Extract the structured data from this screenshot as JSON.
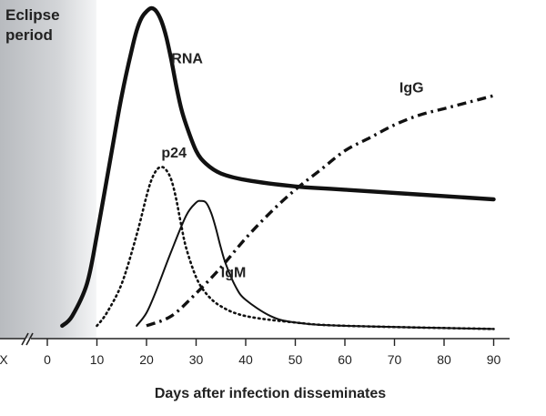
{
  "chart_data": {
    "type": "line",
    "title": "",
    "xlabel": "Days after infection disseminates",
    "ylabel": "",
    "xlim": [
      0,
      90
    ],
    "x_ticks": [
      "X",
      "0",
      "10",
      "20",
      "30",
      "40",
      "50",
      "60",
      "70",
      "80",
      "90"
    ],
    "axis_break": true,
    "shaded_region_label": "Eclipse period",
    "grid": false,
    "legend": "none",
    "series": [
      {
        "name": "RNA",
        "style": "thick-solid",
        "points": [
          [
            3,
            0.02
          ],
          [
            5,
            0.05
          ],
          [
            8,
            0.15
          ],
          [
            10,
            0.3
          ],
          [
            13,
            0.56
          ],
          [
            15,
            0.73
          ],
          [
            17,
            0.87
          ],
          [
            18,
            0.93
          ],
          [
            19,
            0.97
          ],
          [
            20,
            0.99
          ],
          [
            21,
            1.0
          ],
          [
            22,
            0.99
          ],
          [
            23,
            0.96
          ],
          [
            24,
            0.91
          ],
          [
            25,
            0.84
          ],
          [
            26,
            0.76
          ],
          [
            27,
            0.69
          ],
          [
            28,
            0.64
          ],
          [
            30,
            0.56
          ],
          [
            32,
            0.52
          ],
          [
            35,
            0.49
          ],
          [
            40,
            0.47
          ],
          [
            50,
            0.45
          ],
          [
            60,
            0.44
          ],
          [
            90,
            0.41
          ]
        ]
      },
      {
        "name": "p24",
        "style": "dotted",
        "points": [
          [
            10,
            0.02
          ],
          [
            12,
            0.06
          ],
          [
            15,
            0.15
          ],
          [
            18,
            0.3
          ],
          [
            20,
            0.42
          ],
          [
            21,
            0.47
          ],
          [
            22,
            0.5
          ],
          [
            23,
            0.51
          ],
          [
            24,
            0.5
          ],
          [
            25,
            0.47
          ],
          [
            26,
            0.41
          ],
          [
            27,
            0.33
          ],
          [
            28,
            0.26
          ],
          [
            30,
            0.17
          ],
          [
            32,
            0.12
          ],
          [
            35,
            0.08
          ],
          [
            40,
            0.05
          ],
          [
            50,
            0.03
          ],
          [
            60,
            0.02
          ],
          [
            90,
            0.01
          ]
        ]
      },
      {
        "name": "IgM",
        "style": "solid",
        "points": [
          [
            18,
            0.02
          ],
          [
            20,
            0.06
          ],
          [
            22,
            0.13
          ],
          [
            25,
            0.25
          ],
          [
            28,
            0.36
          ],
          [
            30,
            0.4
          ],
          [
            31,
            0.405
          ],
          [
            32,
            0.4
          ],
          [
            33,
            0.37
          ],
          [
            34,
            0.32
          ],
          [
            35,
            0.26
          ],
          [
            36,
            0.21
          ],
          [
            38,
            0.14
          ],
          [
            40,
            0.1
          ],
          [
            45,
            0.05
          ],
          [
            50,
            0.03
          ],
          [
            60,
            0.02
          ],
          [
            90,
            0.01
          ]
        ]
      },
      {
        "name": "IgG",
        "style": "dash-dot",
        "points": [
          [
            20,
            0.02
          ],
          [
            25,
            0.05
          ],
          [
            30,
            0.12
          ],
          [
            35,
            0.2
          ],
          [
            40,
            0.29
          ],
          [
            45,
            0.37
          ],
          [
            50,
            0.44
          ],
          [
            55,
            0.5
          ],
          [
            60,
            0.56
          ],
          [
            65,
            0.6
          ],
          [
            70,
            0.64
          ],
          [
            75,
            0.67
          ],
          [
            80,
            0.69
          ],
          [
            85,
            0.71
          ],
          [
            90,
            0.73
          ]
        ]
      }
    ],
    "series_labels": [
      {
        "name": "RNA",
        "at": [
          25,
          0.83
        ]
      },
      {
        "name": "p24",
        "at": [
          23,
          0.54
        ]
      },
      {
        "name": "IgM",
        "at": [
          35,
          0.17
        ]
      },
      {
        "name": "IgG",
        "at": [
          71,
          0.74
        ]
      }
    ]
  }
}
